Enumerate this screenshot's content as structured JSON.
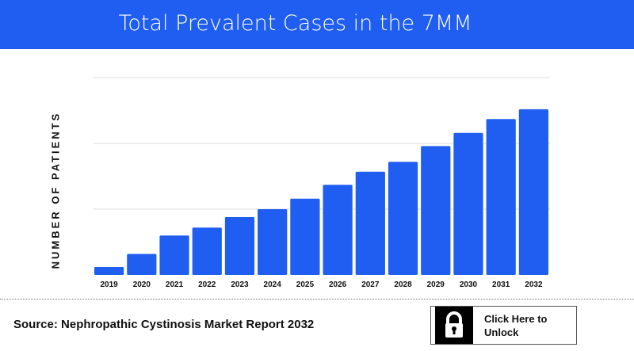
{
  "header": {
    "title": "Total Prevalent Cases in the 7MM"
  },
  "footer": {
    "source": "Source: Nephropathic Cystinosis Market Report 2032",
    "unlock_label": "Click Here to Unlock",
    "unlock_icon": "lock-icon"
  },
  "colors": {
    "bar": "#1f5ef0",
    "header": "#1f5ef0"
  },
  "chart_data": {
    "type": "bar",
    "title": "Total Prevalent Cases in the 7MM",
    "xlabel": "",
    "ylabel": "NUMBER OF PATIENTS",
    "categories": [
      "2019",
      "2020",
      "2021",
      "2022",
      "2023",
      "2024",
      "2025",
      "2026",
      "2027",
      "2028",
      "2029",
      "2030",
      "2031",
      "2032"
    ],
    "values": [
      0.12,
      0.32,
      0.6,
      0.72,
      0.88,
      1.0,
      1.16,
      1.37,
      1.57,
      1.72,
      1.96,
      2.16,
      2.37,
      2.52
    ],
    "ylim": [
      0,
      3
    ],
    "y_tick_labels_shown": false,
    "grid": true,
    "legend": "none"
  }
}
